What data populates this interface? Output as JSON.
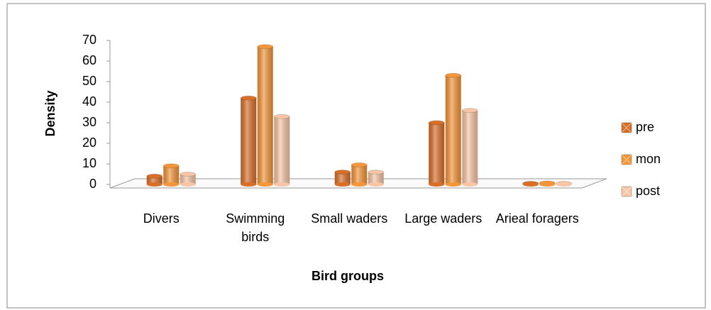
{
  "chart_data": {
    "type": "bar",
    "x_label": "Bird groups",
    "y_label": "Density",
    "categories": [
      "Divers",
      "Swimming birds",
      "Small waders",
      "Large waders",
      "Arieal foragers"
    ],
    "series": [
      {
        "name": "pre",
        "color": "#d9702a",
        "values": [
          4,
          42,
          6,
          30,
          0.5
        ]
      },
      {
        "name": "mon",
        "color": "#f5963a",
        "values": [
          9,
          67,
          9.5,
          53,
          0.7
        ]
      },
      {
        "name": "post",
        "color": "#f8c6a6",
        "values": [
          5,
          33,
          6,
          36,
          0.5
        ]
      }
    ],
    "ylim": [
      0,
      70
    ],
    "yticks": [
      0,
      10,
      20,
      30,
      40,
      50,
      60,
      70
    ],
    "grid": false,
    "legend": "right"
  }
}
